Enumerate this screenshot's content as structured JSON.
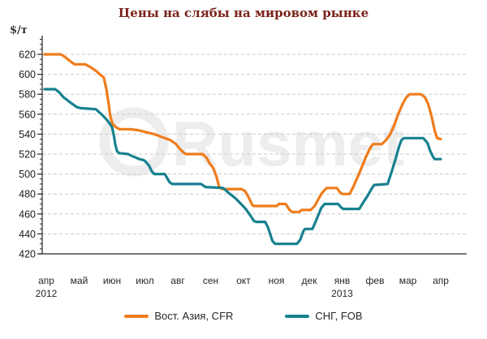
{
  "title": "Цены на слябы на мировом рынке",
  "watermark": "Rusmet",
  "chart_data": {
    "type": "line",
    "title": "Цены на слябы на мировом рынке",
    "xlabel": "",
    "ylabel": "$/т",
    "ylim": [
      420,
      620
    ],
    "y_tick_step": 20,
    "y_minor_tick_step": 5,
    "grid": "horizontal dashed",
    "legend_position": "bottom",
    "x_unit": "month index (0 = апр 2012, 12 = апр 2013)",
    "x_tick_labels": [
      "апр",
      "май",
      "июн",
      "июл",
      "авг",
      "сен",
      "окт",
      "ноя",
      "дек",
      "янв",
      "фев",
      "мар",
      "апр"
    ],
    "x_year_labels": [
      {
        "index": 0,
        "label": "2012"
      },
      {
        "index": 9,
        "label": "2013"
      }
    ],
    "axis_color": "#262626",
    "grid_color": "#c9c9c9",
    "series": [
      {
        "name": "Вост. Азия, CFR",
        "color": "#ef7c1b",
        "points": [
          [
            0,
            620
          ],
          [
            0.49,
            620
          ],
          [
            0.59,
            618
          ],
          [
            0.74,
            614
          ],
          [
            0.86,
            611
          ],
          [
            0.91,
            610
          ],
          [
            1.23,
            610
          ],
          [
            1.4,
            607
          ],
          [
            1.57,
            603
          ],
          [
            1.67,
            600
          ],
          [
            1.79,
            597
          ],
          [
            1.87,
            585
          ],
          [
            1.94,
            570
          ],
          [
            1.99,
            558
          ],
          [
            2.06,
            550
          ],
          [
            2.16,
            547
          ],
          [
            2.26,
            545
          ],
          [
            2.58,
            545
          ],
          [
            2.83,
            544
          ],
          [
            3.07,
            542
          ],
          [
            3.32,
            540
          ],
          [
            3.56,
            537
          ],
          [
            3.81,
            534
          ],
          [
            3.98,
            530
          ],
          [
            4.1,
            525
          ],
          [
            4.23,
            521
          ],
          [
            4.3,
            520
          ],
          [
            4.79,
            520
          ],
          [
            4.91,
            516
          ],
          [
            5.01,
            510
          ],
          [
            5.11,
            506
          ],
          [
            5.21,
            497
          ],
          [
            5.28,
            488
          ],
          [
            5.33,
            486
          ],
          [
            5.38,
            485
          ],
          [
            5.95,
            485
          ],
          [
            6.07,
            483
          ],
          [
            6.19,
            476
          ],
          [
            6.29,
            469
          ],
          [
            6.34,
            468
          ],
          [
            7.03,
            468
          ],
          [
            7.1,
            470
          ],
          [
            7.3,
            470
          ],
          [
            7.42,
            464
          ],
          [
            7.49,
            462
          ],
          [
            7.71,
            462
          ],
          [
            7.79,
            464
          ],
          [
            8.06,
            464
          ],
          [
            8.18,
            468
          ],
          [
            8.28,
            474
          ],
          [
            8.38,
            480
          ],
          [
            8.48,
            484
          ],
          [
            8.55,
            486
          ],
          [
            8.85,
            486
          ],
          [
            8.94,
            482
          ],
          [
            9.02,
            480
          ],
          [
            9.24,
            480
          ],
          [
            9.36,
            488
          ],
          [
            9.48,
            497
          ],
          [
            9.61,
            507
          ],
          [
            9.73,
            517
          ],
          [
            9.83,
            524
          ],
          [
            9.9,
            528
          ],
          [
            9.95,
            530
          ],
          [
            10.22,
            530
          ],
          [
            10.34,
            534
          ],
          [
            10.47,
            540
          ],
          [
            10.59,
            549
          ],
          [
            10.71,
            560
          ],
          [
            10.84,
            570
          ],
          [
            10.96,
            577
          ],
          [
            11.06,
            580
          ],
          [
            11.4,
            580
          ],
          [
            11.52,
            577
          ],
          [
            11.62,
            570
          ],
          [
            11.72,
            558
          ],
          [
            11.82,
            543
          ],
          [
            11.89,
            536
          ],
          [
            12,
            535
          ]
        ]
      },
      {
        "name": "СНГ, FOB",
        "color": "#17818f",
        "points": [
          [
            0,
            585
          ],
          [
            0.32,
            585
          ],
          [
            0.44,
            582
          ],
          [
            0.57,
            577
          ],
          [
            0.69,
            574
          ],
          [
            0.81,
            571
          ],
          [
            0.98,
            567
          ],
          [
            1.11,
            566
          ],
          [
            1.55,
            565
          ],
          [
            1.72,
            560
          ],
          [
            1.84,
            556
          ],
          [
            1.94,
            552
          ],
          [
            2.04,
            547
          ],
          [
            2.09,
            540
          ],
          [
            2.14,
            530
          ],
          [
            2.19,
            523
          ],
          [
            2.26,
            521
          ],
          [
            2.53,
            520
          ],
          [
            2.65,
            518
          ],
          [
            2.73,
            517
          ],
          [
            2.87,
            515
          ],
          [
            3,
            514
          ],
          [
            3.07,
            512
          ],
          [
            3.17,
            508
          ],
          [
            3.24,
            503
          ],
          [
            3.32,
            500
          ],
          [
            3.64,
            500
          ],
          [
            3.71,
            496
          ],
          [
            3.78,
            492
          ],
          [
            3.86,
            490
          ],
          [
            4.74,
            490
          ],
          [
            4.87,
            487
          ],
          [
            5.41,
            486
          ],
          [
            5.58,
            481
          ],
          [
            5.77,
            476
          ],
          [
            5.95,
            470
          ],
          [
            6.09,
            465
          ],
          [
            6.22,
            459
          ],
          [
            6.34,
            453
          ],
          [
            6.41,
            452
          ],
          [
            6.68,
            452
          ],
          [
            6.76,
            447
          ],
          [
            6.83,
            440
          ],
          [
            6.9,
            433
          ],
          [
            6.98,
            430
          ],
          [
            7.64,
            430
          ],
          [
            7.74,
            434
          ],
          [
            7.84,
            443
          ],
          [
            7.89,
            445
          ],
          [
            8.11,
            445
          ],
          [
            8.18,
            450
          ],
          [
            8.28,
            458
          ],
          [
            8.38,
            466
          ],
          [
            8.48,
            470
          ],
          [
            8.89,
            470
          ],
          [
            8.97,
            467
          ],
          [
            9.04,
            465
          ],
          [
            9.53,
            465
          ],
          [
            9.66,
            472
          ],
          [
            9.78,
            478
          ],
          [
            9.9,
            485
          ],
          [
            9.98,
            489
          ],
          [
            10.39,
            490
          ],
          [
            10.52,
            503
          ],
          [
            10.64,
            516
          ],
          [
            10.74,
            528
          ],
          [
            10.81,
            534
          ],
          [
            10.88,
            536
          ],
          [
            11.47,
            536
          ],
          [
            11.6,
            531
          ],
          [
            11.67,
            524
          ],
          [
            11.77,
            517
          ],
          [
            11.82,
            515
          ],
          [
            12,
            515
          ]
        ]
      }
    ]
  }
}
